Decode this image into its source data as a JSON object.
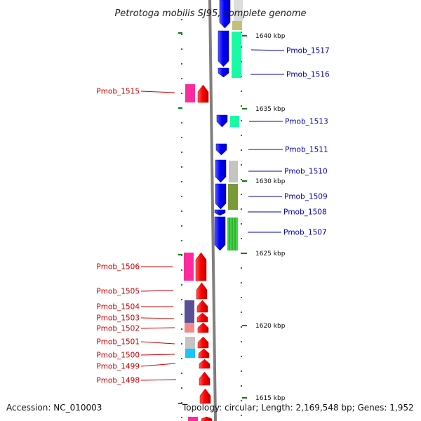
{
  "title": "Petrotoga mobilis SJ95, complete genome",
  "footer": {
    "accession": "Accession: NC_010003",
    "summary": "Topology: circular; Length: 2,169,548 bp; Genes: 1,952"
  },
  "ruler_labels": [
    "1640 kbp",
    "1635 kbp",
    "1630 kbp",
    "1625 kbp",
    "1620 kbp",
    "1615 kbp"
  ],
  "left_genes": [
    {
      "label": "Pmob_1515",
      "cog_color": "#ff1493"
    },
    {
      "label": "Pmob_1506",
      "cog_color": "#ff1493"
    },
    {
      "label": "Pmob_1505",
      "cog_color": null
    },
    {
      "label": "Pmob_1504",
      "cog_color": "#483d8b"
    },
    {
      "label": "Pmob_1503",
      "cog_color": null
    },
    {
      "label": "Pmob_1502",
      "cog_color": "#f08080"
    },
    {
      "label": "Pmob_1501",
      "cog_color": "#bebebe"
    },
    {
      "label": "Pmob_1500",
      "cog_color": "#00bfff"
    },
    {
      "label": "Pmob_1499",
      "cog_color": null
    },
    {
      "label": "Pmob_1498",
      "cog_color": null
    }
  ],
  "right_genes": [
    {
      "label": "Pmob_1517",
      "cog_color": "#00fa9a"
    },
    {
      "label": "Pmob_1516",
      "cog_color": "#00fa9a"
    },
    {
      "label": "Pmob_1513",
      "cog_color": "#00fa9a"
    },
    {
      "label": "Pmob_1511",
      "cog_color": null
    },
    {
      "label": "Pmob_1510",
      "cog_color": "#bebebe"
    },
    {
      "label": "Pmob_1509",
      "cog_color": "#6b8e23"
    },
    {
      "label": "Pmob_1508",
      "cog_color": null
    },
    {
      "label": "Pmob_1507",
      "cog_color": "#32cd32"
    }
  ],
  "colors": {
    "forward_strand": "#ff0000",
    "reverse_strand": "#0000ff",
    "backbone": "#808080",
    "ticks": "#008000"
  }
}
